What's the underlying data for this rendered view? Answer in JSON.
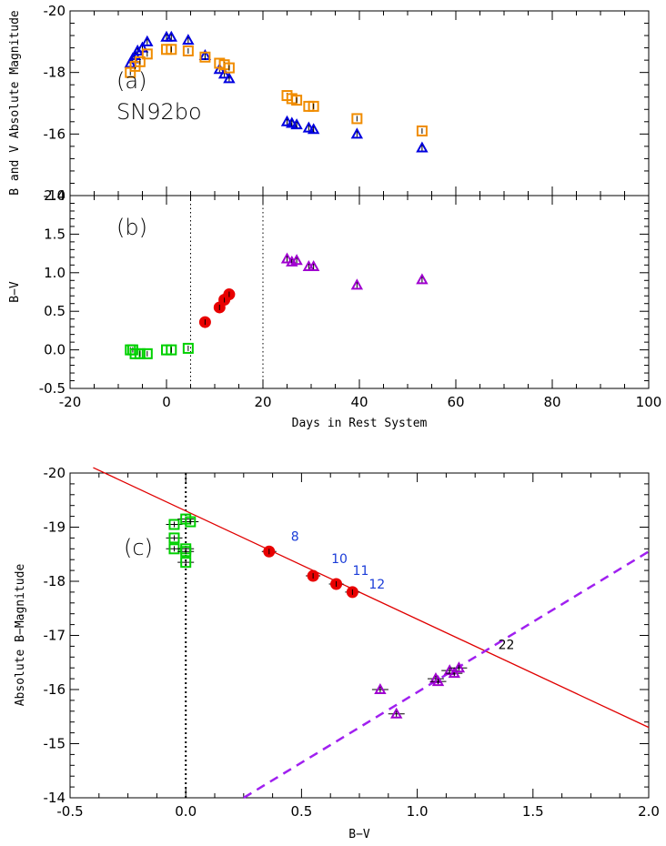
{
  "colors": {
    "b_band": "#0000e0",
    "v_band": "#f08c00",
    "green": "#00d000",
    "red": "#e80000",
    "purple": "#a000d0",
    "epoch_blue": "#1a3cd8",
    "line_red": "#e00000",
    "dash_purple": "#a020f0"
  },
  "chart_data": [
    {
      "panel": "a",
      "type": "scatter",
      "panel_label": "(a)",
      "annotation": "SN92bo",
      "ylabel": "B and V Absolute Magnitude",
      "xlabel": "",
      "xlim": [
        -20,
        100
      ],
      "ylim": [
        -14,
        -20
      ],
      "y_ticks": [
        "-20",
        "-18",
        "-16",
        "-14"
      ],
      "grid": false,
      "series": [
        {
          "marker": "triangle",
          "color": "b_band",
          "points": [
            [
              -7.5,
              -18.3
            ],
            [
              -7,
              -18.45
            ],
            [
              -6.5,
              -18.55
            ],
            [
              -6,
              -18.7
            ],
            [
              -5,
              -18.8
            ],
            [
              -4,
              -19.0
            ],
            [
              0,
              -19.15
            ],
            [
              1,
              -19.15
            ],
            [
              4.5,
              -19.05
            ],
            [
              8,
              -18.55
            ],
            [
              11,
              -18.1
            ],
            [
              12,
              -17.95
            ],
            [
              13,
              -17.8
            ],
            [
              25,
              -16.4
            ],
            [
              26,
              -16.35
            ],
            [
              27,
              -16.3
            ],
            [
              29.5,
              -16.2
            ],
            [
              30.5,
              -16.15
            ],
            [
              39.5,
              -16.0
            ],
            [
              53,
              -15.55
            ]
          ]
        },
        {
          "marker": "square",
          "color": "v_band",
          "points": [
            [
              -7.5,
              -18.0
            ],
            [
              -6.5,
              -18.2
            ],
            [
              -5.5,
              -18.35
            ],
            [
              -4,
              -18.6
            ],
            [
              0,
              -18.75
            ],
            [
              1,
              -18.75
            ],
            [
              4.5,
              -18.7
            ],
            [
              8,
              -18.5
            ],
            [
              11,
              -18.3
            ],
            [
              12,
              -18.25
            ],
            [
              13,
              -18.15
            ],
            [
              25,
              -17.25
            ],
            [
              26,
              -17.15
            ],
            [
              27,
              -17.1
            ],
            [
              29.5,
              -16.9
            ],
            [
              30.5,
              -16.9
            ],
            [
              39.5,
              -16.5
            ],
            [
              53,
              -16.1
            ]
          ]
        }
      ]
    },
    {
      "panel": "b",
      "type": "scatter",
      "panel_label": "(b)",
      "ylabel": "B−V",
      "xlabel": "Days in Rest System",
      "xlim": [
        -20,
        100
      ],
      "ylim": [
        -0.5,
        2.0
      ],
      "x_ticks": [
        "-20",
        "0",
        "20",
        "40",
        "60",
        "80",
        "100"
      ],
      "y_ticks": [
        "-0.5",
        "0.0",
        "0.5",
        "1.0",
        "1.5",
        "2.0"
      ],
      "vertical_lines": [
        5,
        20
      ],
      "grid": false,
      "series": [
        {
          "marker": "square",
          "color": "green",
          "points": [
            [
              -7.5,
              0.0
            ],
            [
              -7,
              0.0
            ],
            [
              -6.5,
              -0.05
            ],
            [
              -5.5,
              -0.05
            ],
            [
              -4,
              -0.05
            ],
            [
              0,
              0.0
            ],
            [
              1,
              0.0
            ],
            [
              4.5,
              0.02
            ]
          ]
        },
        {
          "marker": "circle",
          "color": "red",
          "points": [
            [
              8,
              0.36
            ],
            [
              11,
              0.55
            ],
            [
              12,
              0.65
            ],
            [
              13,
              0.72
            ]
          ]
        },
        {
          "marker": "triangle",
          "color": "purple",
          "points": [
            [
              25,
              1.18
            ],
            [
              26,
              1.14
            ],
            [
              27,
              1.16
            ],
            [
              29.5,
              1.08
            ],
            [
              30.5,
              1.08
            ],
            [
              39.5,
              0.84
            ],
            [
              53,
              0.91
            ]
          ]
        }
      ]
    },
    {
      "panel": "c",
      "type": "scatter",
      "panel_label": "(c)",
      "ylabel": "Absolute B−Magnitude",
      "xlabel": "B−V",
      "xlim": [
        -0.5,
        2.0
      ],
      "ylim": [
        -14,
        -20
      ],
      "x_ticks": [
        "-0.5",
        "0.0",
        "0.5",
        "1.0",
        "1.5",
        "2.0"
      ],
      "y_ticks": [
        "-20",
        "-19",
        "-18",
        "-17",
        "-16",
        "-15",
        "-14"
      ],
      "vertical_lines": [
        0.0
      ],
      "grid": false,
      "red_line": [
        [
          -0.4,
          -20.1
        ],
        [
          2.0,
          -15.3
        ]
      ],
      "dashed_line": [
        [
          0.25,
          -14.0
        ],
        [
          2.0,
          -18.55
        ]
      ],
      "series": [
        {
          "marker": "square",
          "color": "green",
          "points": [
            [
              -0.05,
              -19.05
            ],
            [
              -0.05,
              -18.8
            ],
            [
              -0.05,
              -18.6
            ],
            [
              0.0,
              -18.6
            ],
            [
              0.0,
              -18.35
            ],
            [
              0.0,
              -19.15
            ],
            [
              0.02,
              -19.1
            ],
            [
              0.0,
              -18.55
            ]
          ]
        },
        {
          "marker": "circle",
          "color": "red",
          "points": [
            [
              0.36,
              -18.55
            ],
            [
              0.55,
              -18.1
            ],
            [
              0.65,
              -17.95
            ],
            [
              0.72,
              -17.8
            ]
          ],
          "labels": [
            "8",
            "10",
            "11",
            "12"
          ]
        },
        {
          "marker": "triangle",
          "color": "purple",
          "points": [
            [
              0.84,
              -16.0
            ],
            [
              0.91,
              -15.55
            ],
            [
              1.08,
              -16.2
            ],
            [
              1.09,
              -16.15
            ],
            [
              1.14,
              -16.35
            ],
            [
              1.16,
              -16.3
            ],
            [
              1.18,
              -16.4
            ]
          ]
        }
      ],
      "annotations": [
        {
          "text": "22",
          "x": 1.35,
          "y": -16.75
        }
      ]
    }
  ]
}
